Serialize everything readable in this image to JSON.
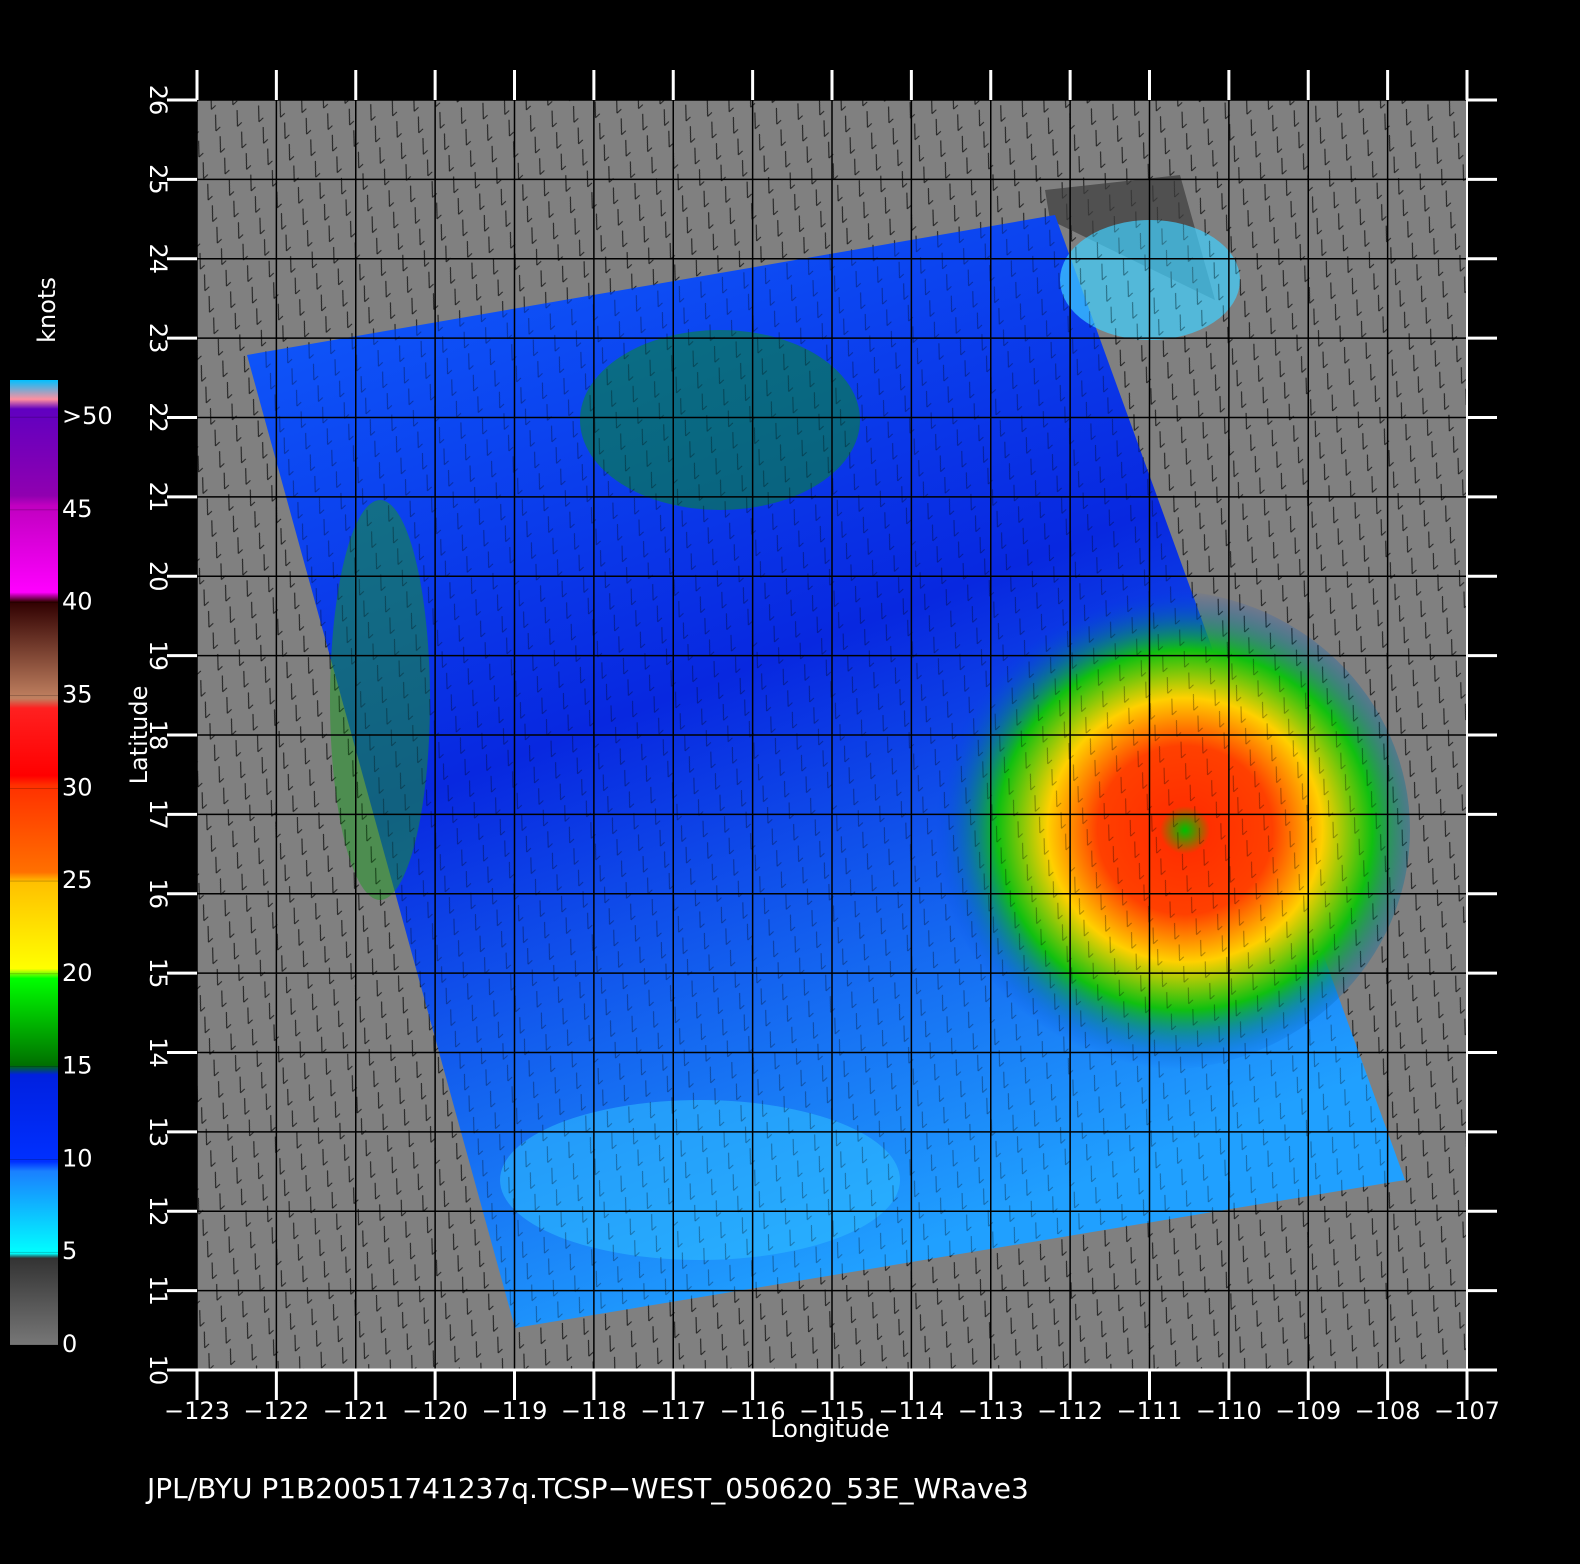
{
  "map": {
    "xlabel": "Longitude",
    "ylabel": "Latitude",
    "xlim": [
      -123,
      -107
    ],
    "ylim": [
      10,
      26
    ],
    "xticks": [
      {
        "value": -123,
        "label": "−123"
      },
      {
        "value": -122,
        "label": "−122"
      },
      {
        "value": -121,
        "label": "−121"
      },
      {
        "value": -120,
        "label": "−120"
      },
      {
        "value": -119,
        "label": "−119"
      },
      {
        "value": -118,
        "label": "−118"
      },
      {
        "value": -117,
        "label": "−117"
      },
      {
        "value": -116,
        "label": "−116"
      },
      {
        "value": -115,
        "label": "−115"
      },
      {
        "value": -114,
        "label": "−114"
      },
      {
        "value": -113,
        "label": "−113"
      },
      {
        "value": -112,
        "label": "−112"
      },
      {
        "value": -111,
        "label": "−111"
      },
      {
        "value": -110,
        "label": "−110"
      },
      {
        "value": -109,
        "label": "−109"
      },
      {
        "value": -108,
        "label": "−108"
      },
      {
        "value": -107,
        "label": "−107"
      }
    ],
    "yticks": [
      10,
      11,
      12,
      13,
      14,
      15,
      16,
      17,
      18,
      19,
      20,
      21,
      22,
      23,
      24,
      25,
      26
    ],
    "grid": true
  },
  "colorbar": {
    "title": "knots",
    "lim": [
      0,
      52
    ],
    "ticks": [
      0,
      5,
      10,
      15,
      20,
      25,
      30,
      35,
      40,
      45,
      {
        "value": 50,
        "label": ">50"
      }
    ]
  },
  "footer": "JPL/BYU  P1B20051741237q.TCSP−WEST_050620_53E_WRave3"
}
